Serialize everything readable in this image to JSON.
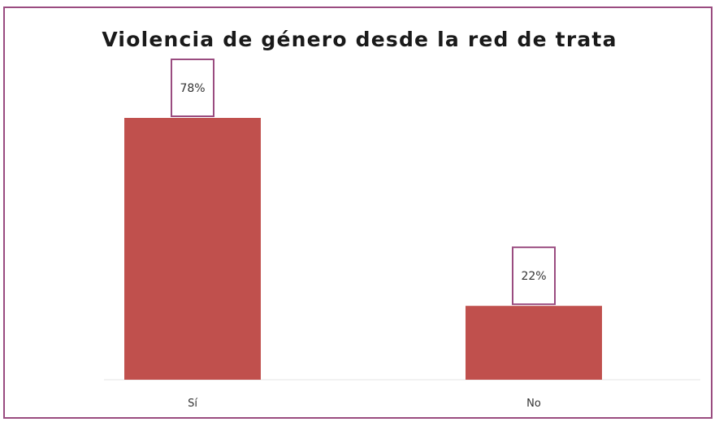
{
  "chart_data": {
    "type": "bar",
    "title": "Violencia de género desde la red de trata",
    "categories": [
      "Sí",
      "No"
    ],
    "values": [
      78,
      22
    ],
    "data_labels": [
      "78%",
      "22%"
    ],
    "xlabel": "",
    "ylabel": "",
    "ylim": [
      0,
      78
    ],
    "grid": false,
    "legend": "none",
    "colors": {
      "bar": "#c0504d",
      "label_box_border": "#9a4c80",
      "frame_border": "#9a4c80"
    }
  }
}
